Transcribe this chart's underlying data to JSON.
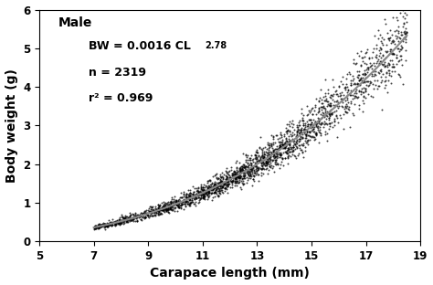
{
  "title": "Male",
  "xlabel": "Carapace length (mm)",
  "ylabel": "Body weight (g)",
  "xlim": [
    5,
    19
  ],
  "ylim": [
    0,
    6
  ],
  "xticks": [
    5,
    7,
    9,
    11,
    13,
    15,
    17,
    19
  ],
  "yticks": [
    0,
    1,
    2,
    3,
    4,
    5,
    6
  ],
  "equation_a": 0.0016,
  "equation_b": 2.78,
  "equation_b_str": "2.78",
  "n": 2319,
  "r2": 0.969,
  "cl_min": 7.0,
  "cl_max": 18.5,
  "scatter_color": "#000000",
  "line_color": "#888888",
  "dot_size": 2.0,
  "dot_alpha": 0.75,
  "background_color": "#ffffff",
  "font_size_label": 10,
  "font_size_text": 9,
  "font_size_title": 10,
  "font_size_super": 7
}
